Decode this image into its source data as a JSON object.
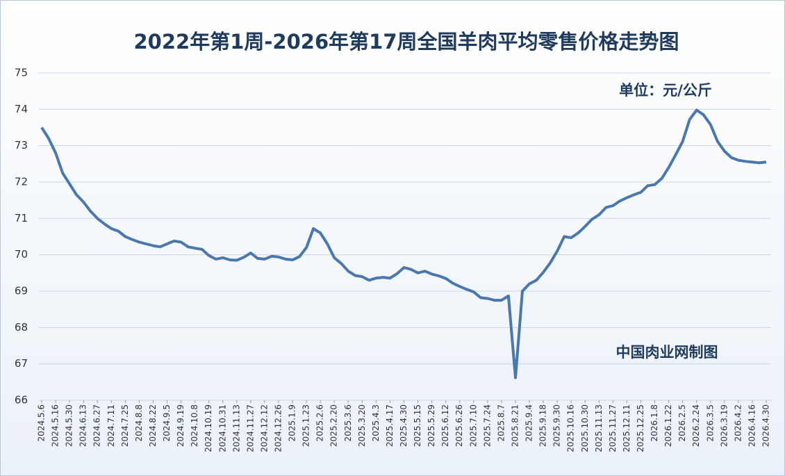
{
  "chart_data": {
    "type": "line",
    "title": "2022年第1周-2026年第17周全国羊肉平均零售价格走势图",
    "annotations": [
      "单位：元/公斤",
      "中国肉业网制图"
    ],
    "categories": [
      "2024.5.6",
      null,
      "2024.5.16",
      null,
      "2024.5.30",
      null,
      "2024.6.13",
      null,
      "2024.6.27",
      null,
      "2024.7.11",
      null,
      "2024.7.25",
      null,
      "2024.8.8",
      null,
      "2024.8.22",
      null,
      "2024.9.5",
      null,
      "2024.9.19",
      null,
      "2024.10.8",
      null,
      "2024.10.19",
      null,
      "2024.10.31",
      null,
      "2024.11.13",
      null,
      "2024.11.27",
      null,
      "2024.12.12",
      null,
      "2024.12.26",
      null,
      "2025.1.9",
      null,
      "2025.1.23",
      null,
      "2025.2.6",
      null,
      "2025.2.20",
      null,
      "2025.3.6",
      null,
      "2025.3.20",
      null,
      "2025.4.3",
      null,
      "2025.4.17",
      null,
      "2025.4.30",
      null,
      "2025.5.15",
      null,
      "2025.5.29",
      null,
      "2025.6.12",
      null,
      "2025.6.26",
      null,
      "2025.7.10",
      null,
      "2025.7.24",
      null,
      "2025.8.7",
      null,
      "2025.8.21",
      null,
      "2025.9.4",
      null,
      "2025.9.18",
      null,
      "2025.9.30",
      null,
      "2025.10.16",
      null,
      "2025.10.30",
      null,
      "2025.11.13",
      null,
      "2025.11.27",
      null,
      "2025.12.11",
      null,
      "2025.12.25",
      null,
      "2026.1.8",
      null,
      "2026.1.22",
      null,
      "2026.2.5",
      null,
      "2026.2.24",
      null,
      "2026.3.5",
      null,
      "2026.3.19",
      null,
      "2026.4.2",
      null,
      "2026.4.16",
      null,
      "2026.4.30"
    ],
    "values": [
      73.5,
      73.2,
      72.8,
      72.25,
      71.95,
      71.65,
      71.45,
      71.2,
      71.0,
      70.85,
      70.72,
      70.65,
      70.5,
      70.42,
      70.35,
      70.3,
      70.25,
      70.22,
      70.3,
      70.38,
      70.35,
      70.22,
      70.18,
      70.15,
      69.98,
      69.88,
      69.92,
      69.86,
      69.85,
      69.93,
      70.05,
      69.9,
      69.88,
      69.96,
      69.94,
      69.88,
      69.86,
      69.95,
      70.2,
      70.72,
      70.6,
      70.3,
      69.92,
      69.76,
      69.55,
      69.43,
      69.4,
      69.3,
      69.36,
      69.38,
      69.36,
      69.48,
      69.65,
      69.6,
      69.5,
      69.55,
      69.47,
      69.42,
      69.35,
      69.22,
      69.13,
      69.05,
      68.98,
      68.82,
      68.8,
      68.75,
      68.75,
      68.87,
      66.62,
      69.0,
      69.2,
      69.3,
      69.52,
      69.78,
      70.1,
      70.5,
      70.47,
      70.6,
      70.78,
      70.98,
      71.1,
      71.3,
      71.35,
      71.48,
      71.57,
      71.65,
      71.72,
      71.9,
      71.93,
      72.1,
      72.4,
      72.75,
      73.12,
      73.72,
      73.98,
      73.85,
      73.58,
      73.12,
      72.85,
      72.67,
      72.6,
      72.57,
      72.55,
      72.53,
      72.55
    ],
    "color": "#4a78ae",
    "ylim": [
      66,
      75
    ],
    "yticks": [
      66,
      67,
      68,
      69,
      70,
      71,
      72,
      73,
      74,
      75
    ],
    "grid": true
  }
}
